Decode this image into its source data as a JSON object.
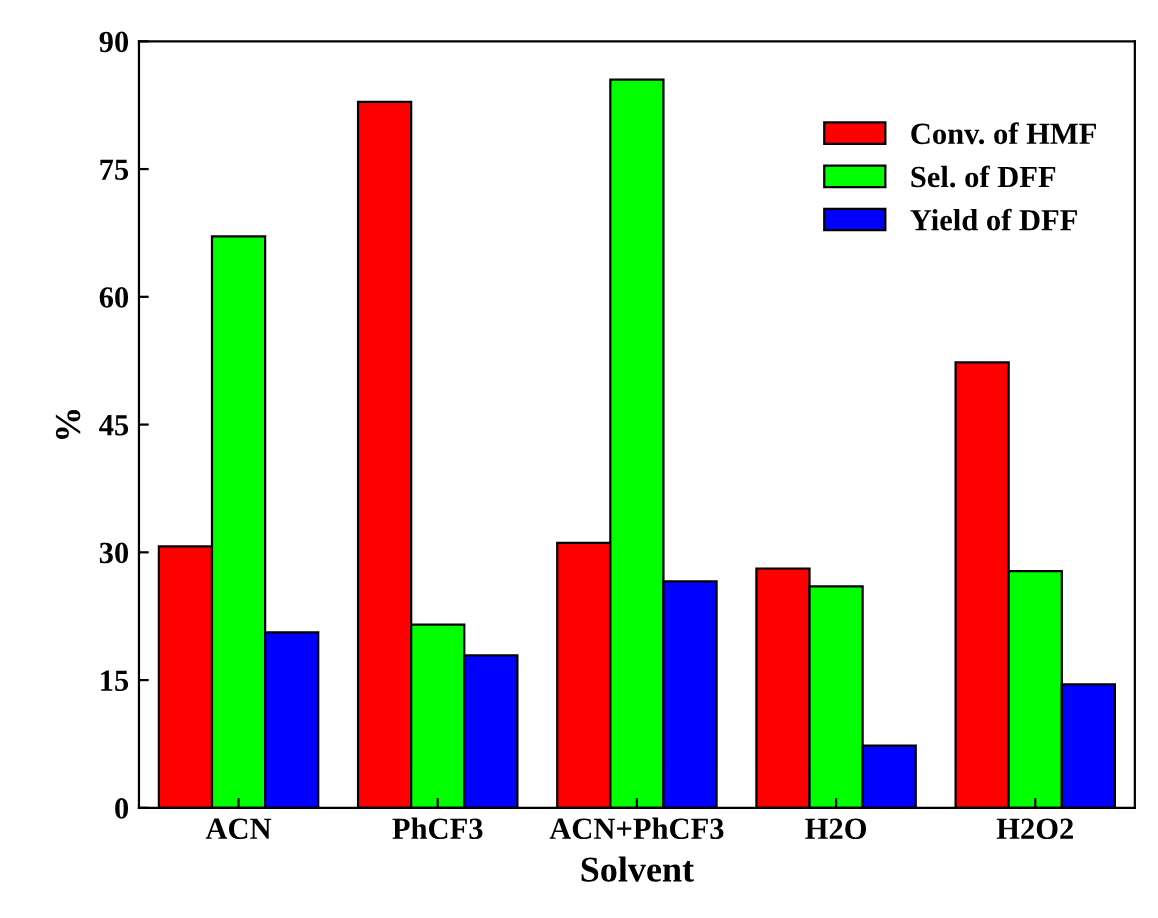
{
  "chart_data": {
    "type": "bar",
    "xlabel": "Solvent",
    "ylabel": "%",
    "categories": [
      "ACN",
      "PhCF3",
      "ACN+PhCF3",
      "H2O",
      "H2O2"
    ],
    "series": [
      {
        "name": "Conv. of HMF",
        "color": "#ff0000",
        "values": [
          30.7,
          82.9,
          31.1,
          28.1,
          52.3
        ]
      },
      {
        "name": "Sel. of DFF",
        "color": "#00ff00",
        "values": [
          67.1,
          21.5,
          85.5,
          26.0,
          27.8
        ]
      },
      {
        "name": "Yield of DFF",
        "color": "#0000ff",
        "values": [
          20.6,
          17.9,
          26.6,
          7.3,
          14.5
        ]
      }
    ],
    "ylim": [
      0,
      90
    ],
    "yticks": [
      0,
      15,
      30,
      45,
      60,
      75,
      90
    ],
    "grid": false,
    "legend": "top right"
  }
}
